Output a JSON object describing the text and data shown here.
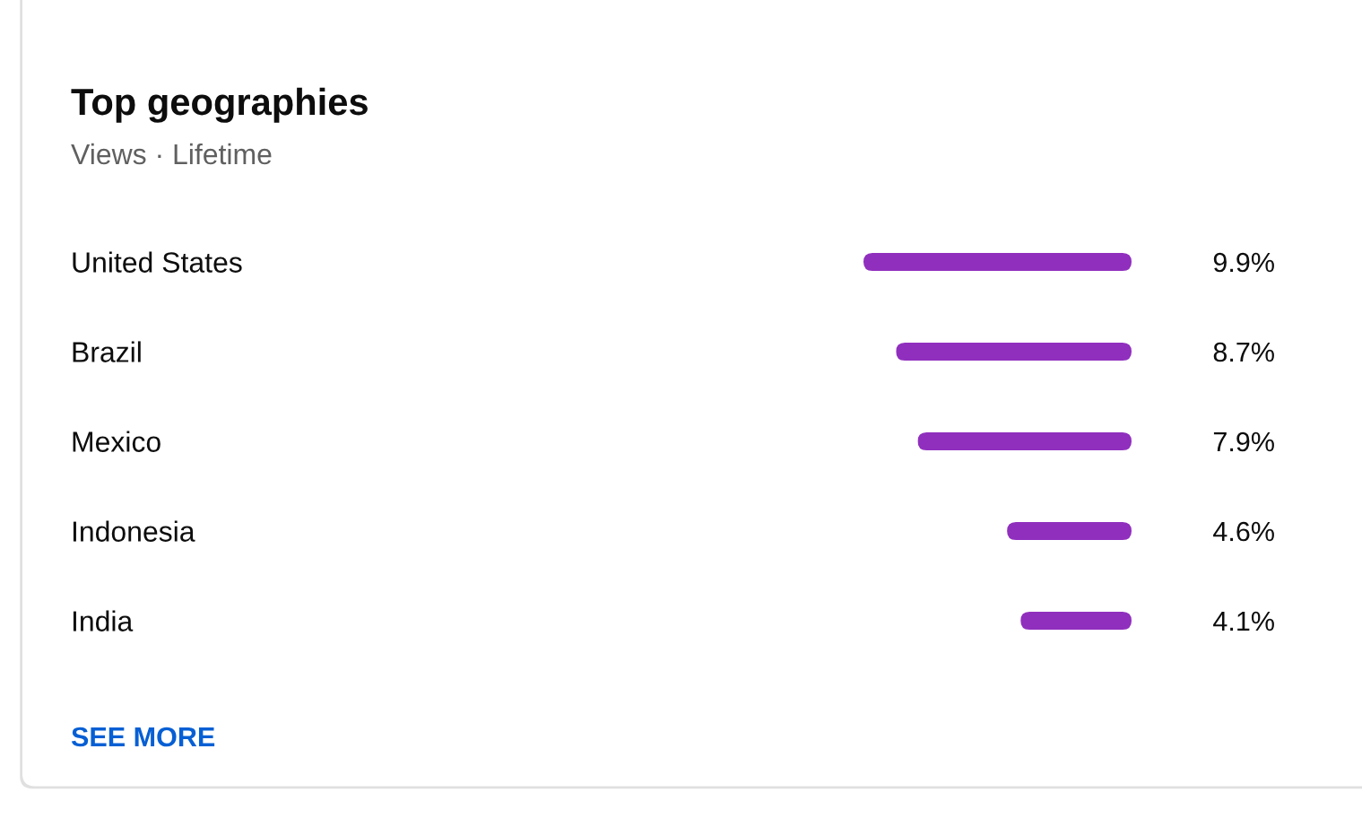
{
  "chart_data": {
    "type": "bar",
    "orientation": "horizontal",
    "title": "Top geographies",
    "subtitle": "Views · Lifetime",
    "categories": [
      "United States",
      "Brazil",
      "Mexico",
      "Indonesia",
      "India"
    ],
    "values": [
      9.9,
      8.7,
      7.9,
      4.6,
      4.1
    ],
    "value_labels": [
      "9.9%",
      "8.7%",
      "7.9%",
      "4.6%",
      "4.1%"
    ],
    "color": "#902fbe",
    "xlim": [
      9.9,
      0
    ],
    "tick_labels": "y",
    "annotations": [
      "SEE MORE"
    ]
  }
}
